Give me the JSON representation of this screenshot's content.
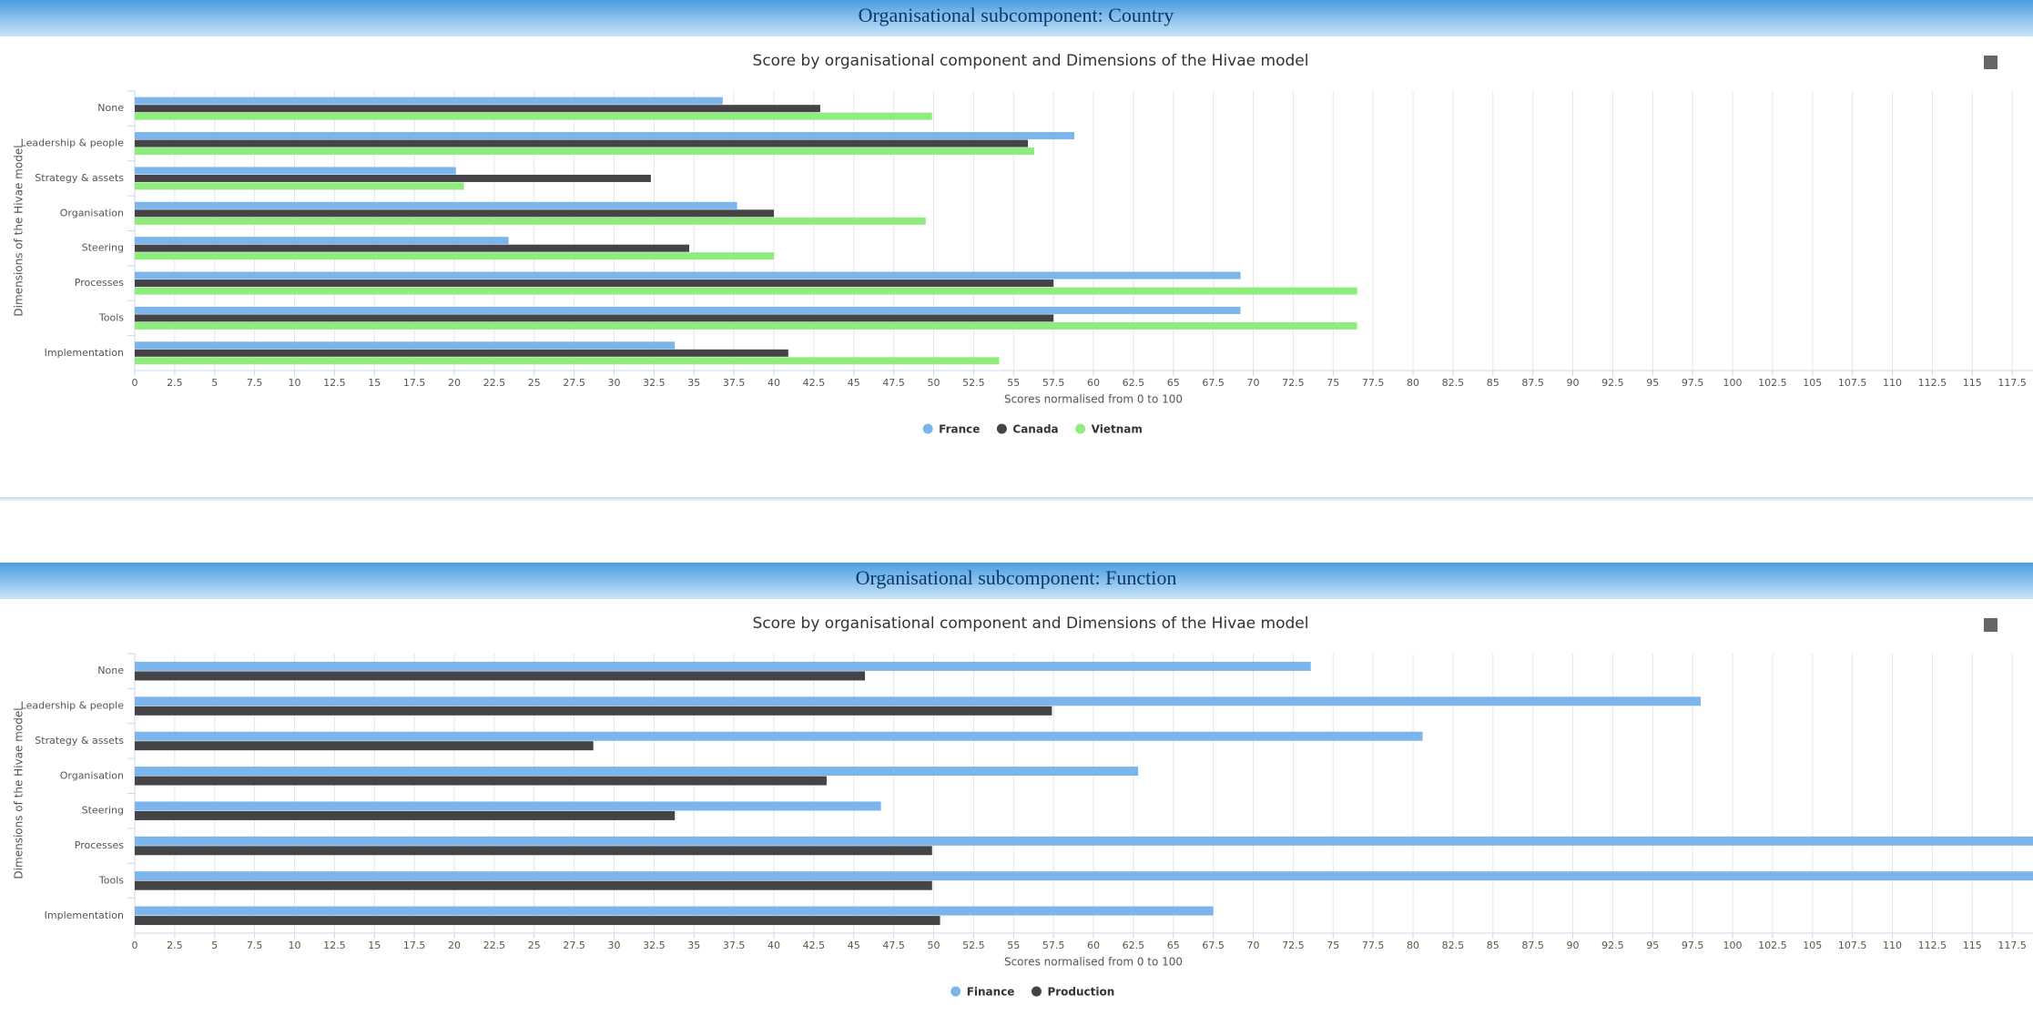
{
  "chart_data": [
    {
      "type": "bar",
      "header": "Organisational subcomponent: Country",
      "title": "Score by organisational component and Dimensions of the Hivae model",
      "x_label": "Scores normalised from 0 to 100",
      "y_label": "Dimensions of the Hivae model",
      "categories": [
        "None",
        "Leadership & people",
        "Strategy & assets",
        "Organisation",
        "Steering",
        "Processes",
        "Tools",
        "Implementation"
      ],
      "series": [
        {
          "name": "France",
          "color": "#7cb5ec",
          "values": [
            36.8,
            58.8,
            20.1,
            37.7,
            23.4,
            69.2,
            69.2,
            33.8
          ]
        },
        {
          "name": "Canada",
          "color": "#434348",
          "values": [
            42.9,
            55.9,
            32.3,
            40.0,
            34.7,
            57.5,
            57.5,
            40.9
          ]
        },
        {
          "name": "Vietnam",
          "color": "#90ed7d",
          "values": [
            49.9,
            56.3,
            20.6,
            49.5,
            40.0,
            76.5,
            76.5,
            54.1
          ]
        }
      ],
      "xlim": [
        0,
        118.8
      ],
      "xticks": [
        0,
        2.5,
        5,
        7.5,
        10,
        12.5,
        15,
        17.5,
        20,
        22.5,
        25,
        27.5,
        30,
        32.5,
        35,
        37.5,
        40,
        42.5,
        45,
        47.5,
        50,
        52.5,
        55,
        57.5,
        60,
        62.5,
        65,
        67.5,
        70,
        72.5,
        75,
        77.5,
        80,
        82.5,
        85,
        87.5,
        90,
        92.5,
        95,
        97.5,
        100,
        102.5,
        105,
        107.5,
        110,
        112.5,
        115,
        117.5
      ],
      "grid": true,
      "legend": "bottom"
    },
    {
      "type": "bar",
      "header": "Organisational subcomponent: Function",
      "title": "Score by organisational component and Dimensions of the Hivae model",
      "x_label": "Scores normalised from 0 to 100",
      "y_label": "Dimensions of the Hivae model",
      "categories": [
        "None",
        "Leadership & people",
        "Strategy & assets",
        "Organisation",
        "Steering",
        "Processes",
        "Tools",
        "Implementation"
      ],
      "series": [
        {
          "name": "Finance",
          "color": "#7cb5ec",
          "values": [
            73.6,
            98.0,
            80.6,
            62.8,
            46.7,
            120,
            120,
            67.5
          ]
        },
        {
          "name": "Production",
          "color": "#434348",
          "values": [
            45.7,
            57.4,
            28.7,
            43.3,
            33.8,
            49.9,
            49.9,
            50.4
          ]
        }
      ],
      "xlim": [
        0,
        118.8
      ],
      "xticks": [
        0,
        2.5,
        5,
        7.5,
        10,
        12.5,
        15,
        17.5,
        20,
        22.5,
        25,
        27.5,
        30,
        32.5,
        35,
        37.5,
        40,
        42.5,
        45,
        47.5,
        50,
        52.5,
        55,
        57.5,
        60,
        62.5,
        65,
        67.5,
        70,
        72.5,
        75,
        77.5,
        80,
        82.5,
        85,
        87.5,
        90,
        92.5,
        95,
        97.5,
        100,
        102.5,
        105,
        107.5,
        110,
        112.5,
        115,
        117.5
      ],
      "grid": true,
      "legend": "bottom"
    }
  ]
}
